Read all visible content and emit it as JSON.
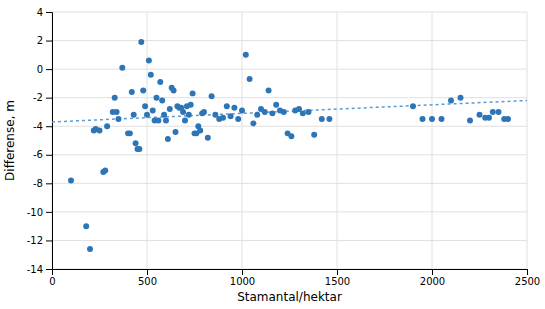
{
  "chart_data": {
    "type": "scatter",
    "xlabel": "Stamantal/hektar",
    "ylabel": "Differense, m",
    "series": [
      {
        "type": "scatter",
        "color": "#2E75B6",
        "marker": "circle",
        "x": [
          100,
          180,
          230,
          280,
          320,
          330,
          340,
          350,
          370,
          400,
          410,
          420,
          430,
          440,
          450,
          460,
          470,
          480,
          490,
          500,
          510,
          520,
          530,
          540,
          550,
          560,
          570,
          580,
          590,
          600,
          610,
          620,
          630,
          640,
          650,
          660,
          670,
          680,
          690,
          700,
          710,
          720,
          730,
          740,
          750,
          760,
          770,
          780,
          790,
          800,
          820,
          840,
          860,
          880,
          900,
          920,
          940,
          960,
          980,
          1000,
          1020,
          1040,
          1060,
          1080,
          1100,
          1120,
          1140,
          1160,
          1180,
          1200,
          1220,
          1240,
          1260,
          1280,
          1300,
          1320,
          1350,
          1380,
          1420,
          1460,
          1900,
          1950,
          2000,
          2050,
          2100,
          2150,
          2200,
          2250,
          2280,
          2300,
          2320,
          2350,
          2380,
          2400,
          200,
          220,
          250,
          270,
          290
        ],
        "values": [
          -7.8,
          -11.0,
          -4.2,
          -7.1,
          -3.0,
          -2.0,
          -3.0,
          -3.5,
          0.1,
          -4.5,
          -4.5,
          -1.6,
          -3.2,
          -5.2,
          -5.6,
          -5.6,
          1.9,
          -1.5,
          -2.6,
          -3.2,
          0.6,
          -0.4,
          -2.9,
          -3.6,
          -2.0,
          -3.6,
          -0.9,
          -2.2,
          -3.2,
          -3.6,
          -4.9,
          -2.8,
          -1.3,
          -1.5,
          -4.4,
          -2.6,
          -2.7,
          -2.7,
          -3.0,
          -3.6,
          -2.6,
          -3.2,
          -2.5,
          -1.7,
          -4.5,
          -4.5,
          -4.0,
          -4.3,
          -3.1,
          -3.0,
          -4.8,
          -1.9,
          -3.2,
          -3.5,
          -3.4,
          -2.6,
          -3.3,
          -2.7,
          -3.5,
          -2.9,
          1.0,
          -0.7,
          -3.8,
          -3.2,
          -2.8,
          -3.0,
          -1.5,
          -3.1,
          -2.5,
          -2.9,
          -3.0,
          -4.5,
          -4.7,
          -2.9,
          -2.8,
          -3.1,
          -3.0,
          -4.6,
          -3.5,
          -3.5,
          -2.6,
          -3.5,
          -3.5,
          -3.5,
          -2.2,
          -2.0,
          -3.6,
          -3.2,
          -3.4,
          -3.4,
          -3.0,
          -3.0,
          -3.5,
          -3.5,
          -12.6,
          -4.3,
          -4.3,
          -7.2,
          -4.0
        ]
      },
      {
        "type": "line",
        "color": "#5B9BD5",
        "line_style": "dotted",
        "x": [
          0,
          2500
        ],
        "values": [
          -3.7,
          -2.2
        ]
      }
    ],
    "xlim": [
      0,
      2500
    ],
    "ylim": [
      -14,
      4
    ],
    "xticks": [
      0,
      500,
      1000,
      1500,
      2000,
      2500
    ],
    "yticks": [
      -14,
      -12,
      -10,
      -8,
      -6,
      -4,
      -2,
      0,
      2,
      4
    ],
    "grid": true
  }
}
